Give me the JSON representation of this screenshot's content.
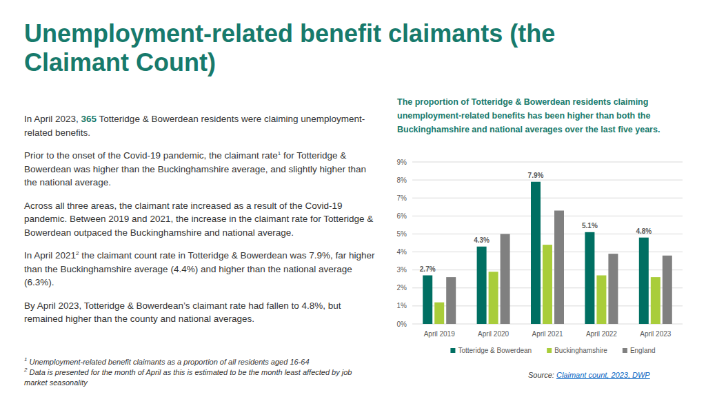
{
  "page": {
    "title": [
      "Unemployment-related benefit claimants (the",
      "Claimant Count)"
    ],
    "paragraphs": [
      {
        "parts": [
          {
            "text": "In April 2023, "
          },
          {
            "text": "365",
            "style": "highlight"
          },
          {
            "text": " Totteridge & Bowerdean residents were claiming unemployment-related benefits."
          }
        ]
      },
      {
        "parts": [
          {
            "text": "Prior to the onset of the Covid-19 pandemic, the claimant rate"
          },
          {
            "text": "1",
            "style": "sup"
          },
          {
            "text": " for Totteridge & Bowerdean was higher than the Buckinghamshire average, and slightly higher than the national average."
          }
        ]
      },
      {
        "parts": [
          {
            "text": "Across all three areas, the claimant rate increased as a result of the Covid-19 pandemic. Between 2019 and 2021, the increase in the claimant rate for Totteridge & Bowerdean outpaced the Buckinghamshire and national average."
          }
        ]
      },
      {
        "parts": [
          {
            "text": "In April 2021"
          },
          {
            "text": "2",
            "style": "sup"
          },
          {
            "text": " the claimant count rate in Totteridge & Bowerdean was 7.9%, far higher than the Buckinghamshire average (4.4%) and higher than the national average (6.3%)."
          }
        ]
      },
      {
        "parts": [
          {
            "text": "By April 2023, Totteridge & Bowerdean’s claimant rate had fallen to 4.8%, but remained higher than the county and national averages."
          }
        ]
      }
    ],
    "footnotes": [
      {
        "parts": [
          {
            "text": "1",
            "style": "sup"
          },
          {
            "text": " Unemployment-related benefit claimants as a proportion of all residents aged 16-64"
          }
        ]
      },
      {
        "parts": [
          {
            "text": "2",
            "style": "sup"
          },
          {
            "text": " Data is presented for the month of April as this is estimated to be the month least affected by job market seasonality"
          }
        ]
      }
    ],
    "source": {
      "parts": [
        {
          "text": "Source: "
        },
        {
          "text": "Claimant count, 2023, DWP",
          "style": "link"
        }
      ]
    }
  },
  "chart_data": {
    "type": "bar",
    "title": "The proportion of Totteridge & Bowerdean residents claiming unemployment-related benefits has been higher than both the Buckinghamshire and national averages over the last five years.",
    "categories": [
      "April 2019",
      "April 2020",
      "April 2021",
      "April 2022",
      "April 2023"
    ],
    "series": [
      {
        "name": "Totteridge & Bowerdean",
        "color": "#006f62",
        "values": [
          2.7,
          4.3,
          7.9,
          5.1,
          4.8
        ],
        "data_labels": true,
        "value_labels": [
          "2.7%",
          "4.3%",
          "7.9%",
          "5.1%",
          "4.8%"
        ]
      },
      {
        "name": "Buckinghamshire",
        "color": "#a9cd3a",
        "values": [
          1.2,
          2.9,
          4.4,
          2.7,
          2.6
        ]
      },
      {
        "name": "England",
        "color": "#808080",
        "values": [
          2.6,
          5.0,
          6.3,
          3.9,
          3.8
        ]
      }
    ],
    "ylim": [
      0,
      9
    ],
    "yticks": [
      {
        "value": 0,
        "label": "0%"
      },
      {
        "value": 1,
        "label": "1%"
      },
      {
        "value": 2,
        "label": "2%"
      },
      {
        "value": 3,
        "label": "3%"
      },
      {
        "value": 4,
        "label": "4%"
      },
      {
        "value": 5,
        "label": "5%"
      },
      {
        "value": 6,
        "label": "6%"
      },
      {
        "value": 7,
        "label": "7%"
      },
      {
        "value": 8,
        "label": "8%"
      },
      {
        "value": 9,
        "label": "9%"
      }
    ],
    "grid": true,
    "legend": "bottom"
  }
}
